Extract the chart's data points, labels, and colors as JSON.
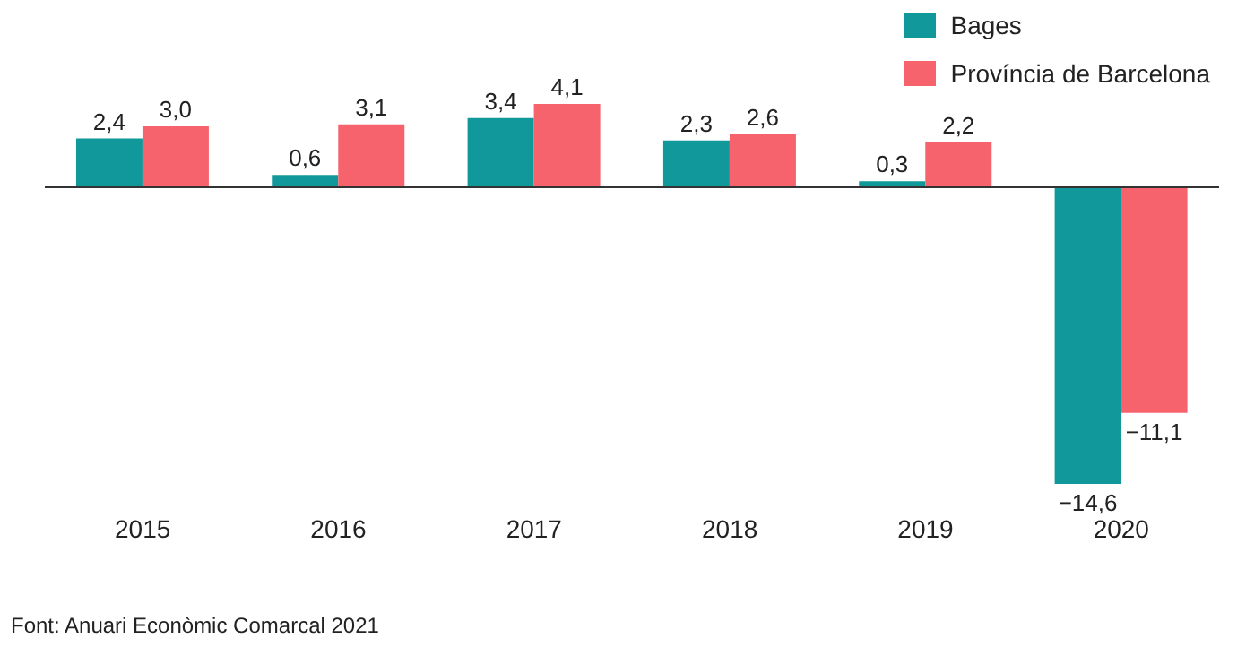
{
  "chart_data": {
    "type": "bar",
    "categories": [
      "2015",
      "2016",
      "2017",
      "2018",
      "2019",
      "2020"
    ],
    "series": [
      {
        "name": "Bages",
        "color": "#11989a",
        "values": [
          2.4,
          0.6,
          3.4,
          2.3,
          0.3,
          -14.6
        ],
        "value_labels": [
          "2,4",
          "0,6",
          "3,4",
          "2,3",
          "0,3",
          "−14,6"
        ]
      },
      {
        "name": "Província de Barcelona",
        "color": "#f7636c",
        "values": [
          3.0,
          3.1,
          4.1,
          2.6,
          2.2,
          -11.1
        ],
        "value_labels": [
          "3,0",
          "3,1",
          "4,1",
          "2,6",
          "2,2",
          "−11,1"
        ]
      }
    ],
    "legend": "top right",
    "grid": false,
    "annotations": [
      "Font: Anuari Econòmic Comarcal 2021"
    ]
  }
}
